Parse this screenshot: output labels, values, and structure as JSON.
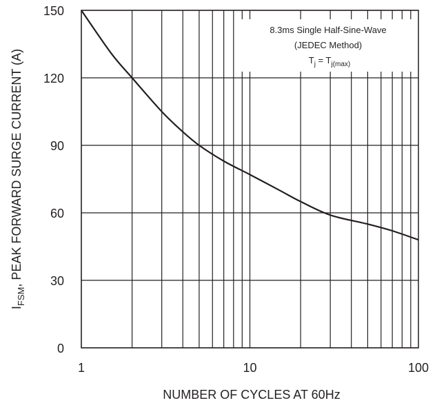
{
  "chart_data": {
    "type": "line",
    "x_scale": "log",
    "xlabel": "NUMBER OF CYCLES AT 60Hz",
    "ylabel": {
      "prefix": "I",
      "subscript": "FSM",
      "rest": ", PEAK FORWARD SURGE CURRENT (A)"
    },
    "xlim": [
      1,
      100
    ],
    "ylim": [
      0,
      150
    ],
    "x_ticks": [
      1,
      10,
      100
    ],
    "x_tick_labels": [
      "1",
      "10",
      "100"
    ],
    "y_ticks": [
      0,
      30,
      60,
      90,
      120,
      150
    ],
    "y_tick_labels": [
      "0",
      "30",
      "60",
      "90",
      "120",
      "150"
    ],
    "grid": true,
    "series": [
      {
        "x": [
          1,
          1.5,
          2,
          3,
          4,
          5,
          7,
          10,
          15,
          20,
          30,
          50,
          70,
          100
        ],
        "y": [
          150,
          131,
          120,
          105,
          96,
          90,
          83,
          77,
          70,
          65,
          59,
          55,
          52,
          48
        ]
      }
    ],
    "annotation": {
      "line1": "8.3ms Single Half-Sine-Wave",
      "line2": "(JEDEC Method)",
      "line3_T": "T",
      "line3_sub1": "j",
      "line3_eq": " = T",
      "line3_sub2": "j(max)"
    }
  }
}
